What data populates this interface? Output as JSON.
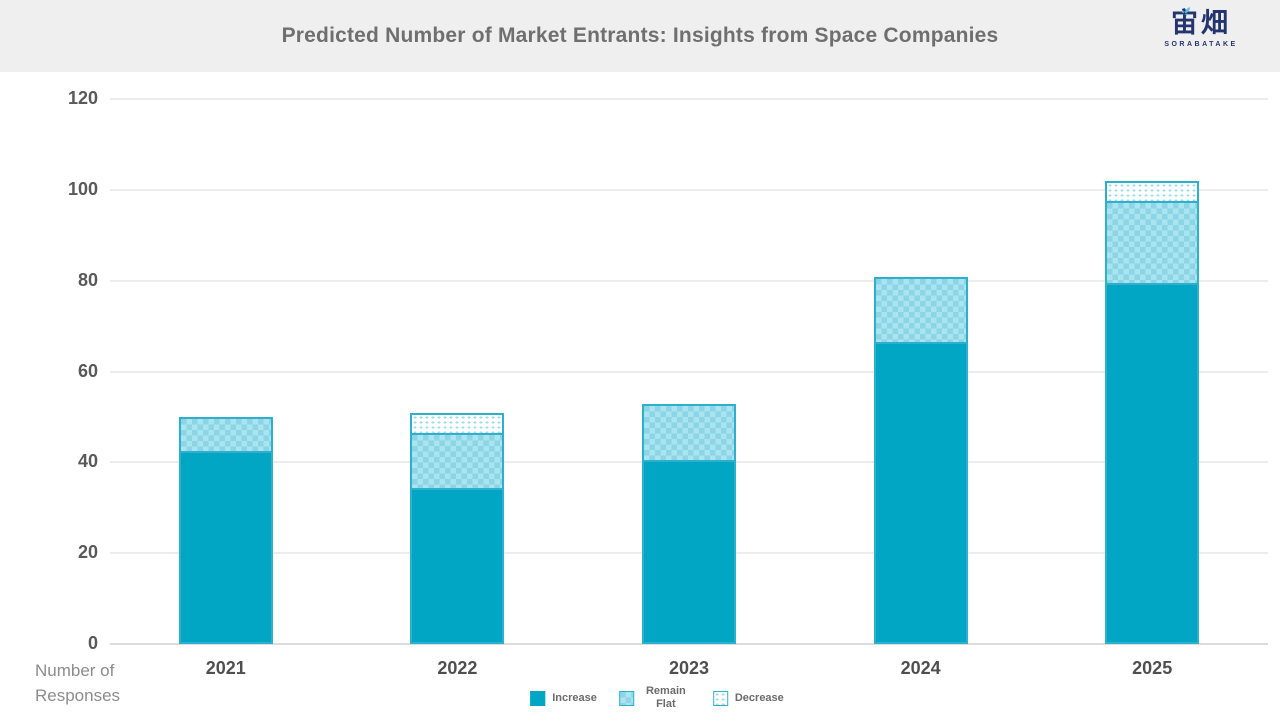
{
  "header": {
    "title": "Predicted Number of Market Entrants: Insights from Space Companies",
    "logo": {
      "text": "宙畑",
      "subtext": "SORABATAKE"
    }
  },
  "axis": {
    "ylabel_line1": "Number of",
    "ylabel_line2": "Responses"
  },
  "chart_data": {
    "type": "bar",
    "stacked": true,
    "title": "Predicted Number of Market Entrants: Insights from Space Companies",
    "categories": [
      "2021",
      "2022",
      "2023",
      "2024",
      "2025"
    ],
    "series": [
      {
        "name": "Increase",
        "pattern": "solid",
        "values": [
          42,
          34,
          40,
          66,
          79
        ]
      },
      {
        "name": "Remain Flat",
        "pattern": "checker",
        "values": [
          7,
          12,
          12,
          14,
          18
        ]
      },
      {
        "name": "Decrease",
        "pattern": "dots",
        "values": [
          0,
          4,
          0,
          0,
          4
        ]
      }
    ],
    "totals": [
      49,
      50,
      52,
      80,
      101
    ],
    "xlabel": "",
    "ylabel": "Number of Responses",
    "ylim": [
      0,
      120
    ],
    "ytick_step": 20,
    "yticks": [
      "0",
      "20",
      "40",
      "60",
      "80",
      "100",
      "120"
    ],
    "grid": true,
    "legend_position": "bottom",
    "colors": {
      "increase_fill": "#00a6c4",
      "checker_light": "#a9e4ef",
      "checker_dark": "#8cd5e6",
      "dots_dot": "#9edcec",
      "bar_border": "#2eb0cd",
      "grid_line": "#ececec",
      "header_bg": "#efeff0",
      "title_text": "#6f6f6f",
      "logo_navy": "#24346e",
      "logo_accent": "#5ec4e4"
    }
  }
}
